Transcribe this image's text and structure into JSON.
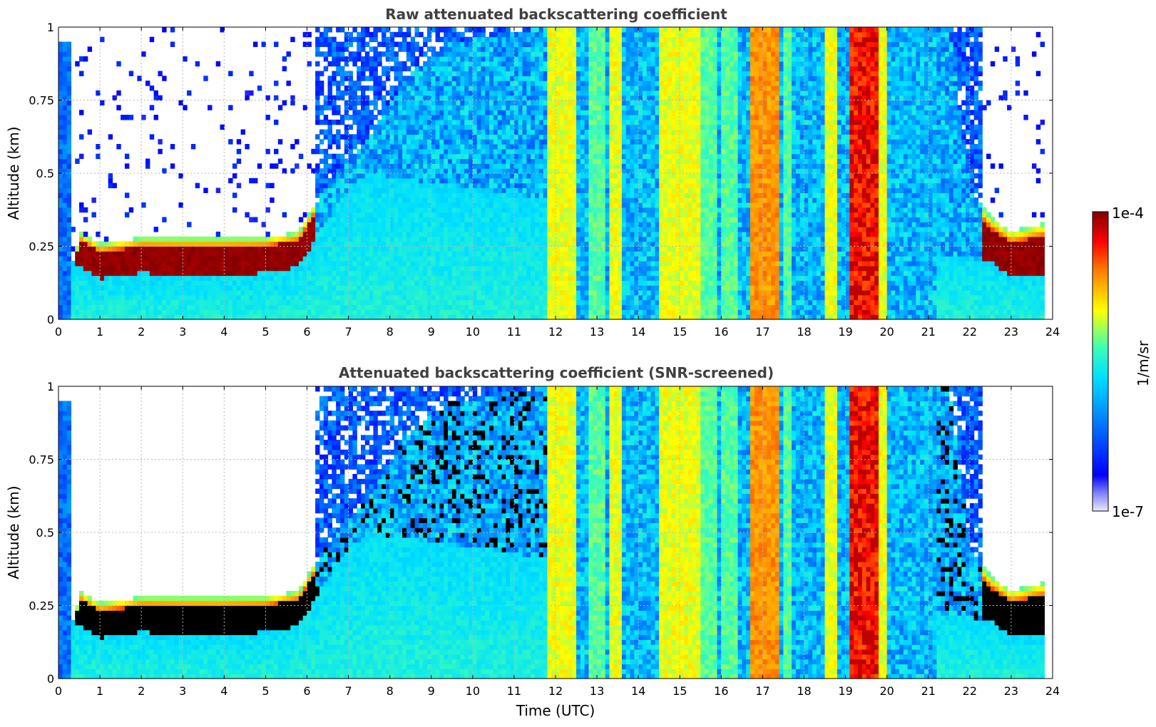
{
  "chart_data": [
    {
      "type": "heatmap",
      "title": "Raw attenuated backscattering coefficient",
      "xlabel": "",
      "ylabel": "Altitude (km)",
      "xlim": [
        0,
        24
      ],
      "ylim": [
        0,
        1
      ],
      "x_ticks": [
        "0",
        "1",
        "2",
        "3",
        "4",
        "5",
        "6",
        "7",
        "8",
        "9",
        "10",
        "11",
        "12",
        "13",
        "14",
        "15",
        "16",
        "17",
        "18",
        "19",
        "20",
        "21",
        "22",
        "23",
        "24"
      ],
      "y_ticks": [
        "0",
        "0.25",
        "0.5",
        "0.75",
        "1"
      ],
      "grid": true,
      "colormap": "jet",
      "color_scale": "log",
      "clim": [
        "1e-7",
        "1e-4"
      ],
      "data_end_time": 23.8,
      "layer_top_km": [
        [
          0.3,
          0.08
        ],
        [
          0.5,
          0.3
        ],
        [
          1.0,
          0.26
        ],
        [
          2.0,
          0.28
        ],
        [
          3.0,
          0.28
        ],
        [
          4.0,
          0.28
        ],
        [
          5.0,
          0.28
        ],
        [
          5.8,
          0.3
        ],
        [
          6.3,
          0.42
        ],
        [
          7.0,
          0.55
        ],
        [
          7.5,
          0.62
        ],
        [
          8.5,
          0.85
        ],
        [
          9.5,
          0.95
        ],
        [
          11.8,
          1.0
        ],
        [
          21.5,
          1.0
        ],
        [
          22.0,
          0.45
        ],
        [
          22.5,
          0.35
        ],
        [
          23.0,
          0.3
        ],
        [
          23.8,
          0.33
        ]
      ],
      "layer_bottom_km": [
        [
          0.3,
          0.2
        ],
        [
          1.0,
          0.14
        ],
        [
          2.0,
          0.16
        ],
        [
          3.0,
          0.15
        ],
        [
          4.0,
          0.15
        ],
        [
          5.0,
          0.16
        ],
        [
          5.8,
          0.18
        ],
        [
          6.3,
          0.3
        ],
        [
          7.0,
          0.45
        ],
        [
          7.5,
          0.5
        ],
        [
          22.5,
          0.2
        ],
        [
          23.0,
          0.15
        ],
        [
          23.8,
          0.15
        ]
      ],
      "precip_bands_utc": [
        [
          11.8,
          12.5,
          "yellow"
        ],
        [
          12.8,
          13.2,
          "green"
        ],
        [
          13.3,
          13.6,
          "yellow"
        ],
        [
          14.5,
          15.5,
          "yellow"
        ],
        [
          15.5,
          15.9,
          "green"
        ],
        [
          16.0,
          16.4,
          "green"
        ],
        [
          16.7,
          17.4,
          "orange"
        ],
        [
          17.5,
          17.7,
          "green"
        ],
        [
          18.5,
          18.8,
          "yellow"
        ],
        [
          19.1,
          19.8,
          "red"
        ],
        [
          19.8,
          20.0,
          "yellow"
        ]
      ]
    },
    {
      "type": "heatmap",
      "title": "Attenuated backscattering coefficient (SNR-screened)",
      "xlabel": "Time (UTC)",
      "ylabel": "Altitude (km)",
      "xlim": [
        0,
        24
      ],
      "ylim": [
        0,
        1
      ],
      "x_ticks": [
        "0",
        "1",
        "2",
        "3",
        "4",
        "5",
        "6",
        "7",
        "8",
        "9",
        "10",
        "11",
        "12",
        "13",
        "14",
        "15",
        "16",
        "17",
        "18",
        "19",
        "20",
        "21",
        "22",
        "23",
        "24"
      ],
      "y_ticks": [
        "0",
        "0.25",
        "0.5",
        "0.75",
        "1"
      ],
      "grid": true,
      "colormap": "jet",
      "color_scale": "log",
      "clim": [
        "1e-7",
        "1e-4"
      ],
      "over_range_color": "black",
      "data_end_time": 23.8
    }
  ],
  "colorbar": {
    "label": "1/m/sr",
    "max_label": "1e-4",
    "min_label": "1e-7",
    "orientation": "vertical",
    "placement": "right"
  }
}
